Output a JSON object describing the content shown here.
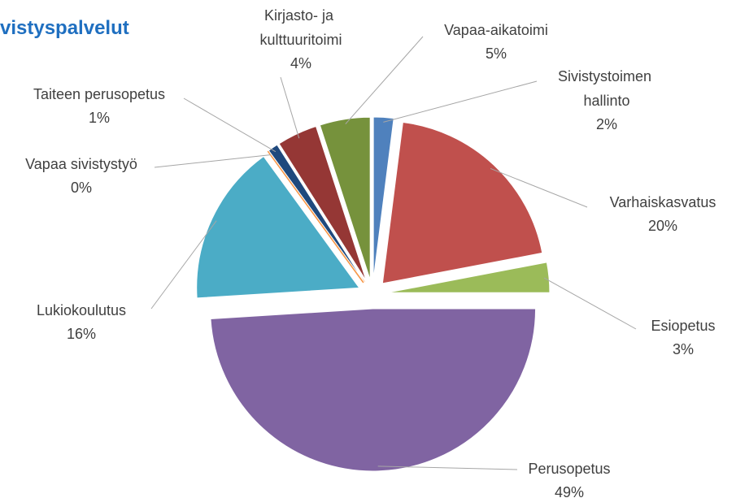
{
  "chart_data": {
    "type": "pie",
    "title": "vistyspalvelut",
    "categories": [
      "Sivistystoimen hallinto",
      "Varhaiskasvatus",
      "Esiopetus",
      "Perusopetus",
      "Lukiokoulutus",
      "Vapaa sivistystyö",
      "Taiteen perusopetus",
      "Kirjasto- ja kulttuuritoimi",
      "Vapaa-aikatoimi"
    ],
    "values": [
      2,
      20,
      3,
      49,
      16,
      0,
      1,
      4,
      5
    ],
    "value_labels": [
      "2%",
      "20%",
      "3%",
      "49%",
      "16%",
      "0%",
      "1%",
      "4%",
      "5%"
    ],
    "colors": [
      "#4f81bd",
      "#c0504d",
      "#9bbb59",
      "#8064a2",
      "#4bacc6",
      "#f79646",
      "#1f497d",
      "#953735",
      "#76923c"
    ]
  }
}
